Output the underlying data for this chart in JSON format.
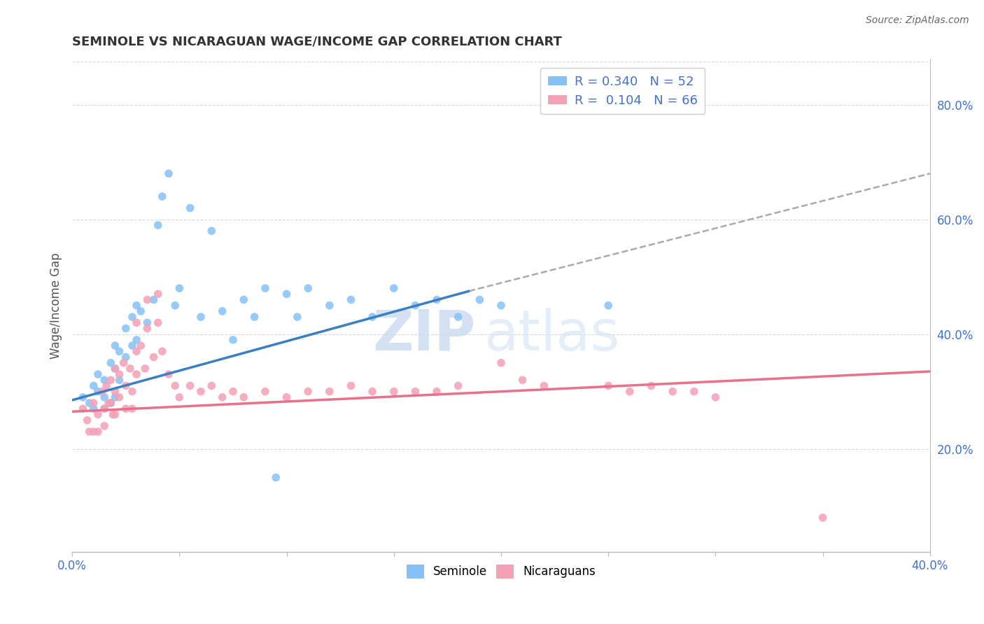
{
  "title": "SEMINOLE VS NICARAGUAN WAGE/INCOME GAP CORRELATION CHART",
  "source_text": "Source: ZipAtlas.com",
  "ylabel": "Wage/Income Gap",
  "y_tick_vals": [
    0.2,
    0.4,
    0.6,
    0.8
  ],
  "x_range": [
    0.0,
    0.4
  ],
  "y_range": [
    0.02,
    0.88
  ],
  "seminole_color": "#85c1f5",
  "nicaraguan_color": "#f4a0b5",
  "trend_blue": "#3a7fc1",
  "trend_pink": "#e8708a",
  "trend_dash": "#aaaaaa",
  "seminole_R": 0.34,
  "seminole_N": 52,
  "nicaraguan_R": 0.104,
  "nicaraguan_N": 66,
  "seminole_scatter_x": [
    0.005,
    0.008,
    0.01,
    0.01,
    0.012,
    0.012,
    0.015,
    0.015,
    0.015,
    0.018,
    0.018,
    0.02,
    0.02,
    0.02,
    0.022,
    0.022,
    0.025,
    0.025,
    0.028,
    0.028,
    0.03,
    0.03,
    0.032,
    0.035,
    0.038,
    0.04,
    0.042,
    0.045,
    0.048,
    0.05,
    0.055,
    0.06,
    0.065,
    0.07,
    0.075,
    0.08,
    0.085,
    0.09,
    0.095,
    0.1,
    0.105,
    0.11,
    0.12,
    0.13,
    0.14,
    0.15,
    0.16,
    0.17,
    0.18,
    0.19,
    0.2,
    0.25
  ],
  "seminole_scatter_y": [
    0.29,
    0.28,
    0.31,
    0.27,
    0.33,
    0.3,
    0.32,
    0.29,
    0.27,
    0.35,
    0.28,
    0.38,
    0.34,
    0.29,
    0.37,
    0.32,
    0.41,
    0.36,
    0.43,
    0.38,
    0.45,
    0.39,
    0.44,
    0.42,
    0.46,
    0.59,
    0.64,
    0.68,
    0.45,
    0.48,
    0.62,
    0.43,
    0.58,
    0.44,
    0.39,
    0.46,
    0.43,
    0.48,
    0.15,
    0.47,
    0.43,
    0.48,
    0.45,
    0.46,
    0.43,
    0.48,
    0.45,
    0.46,
    0.43,
    0.46,
    0.45,
    0.45
  ],
  "nicaraguan_scatter_x": [
    0.005,
    0.007,
    0.008,
    0.01,
    0.01,
    0.012,
    0.012,
    0.014,
    0.015,
    0.015,
    0.016,
    0.017,
    0.018,
    0.018,
    0.019,
    0.02,
    0.02,
    0.02,
    0.022,
    0.022,
    0.024,
    0.025,
    0.025,
    0.027,
    0.028,
    0.028,
    0.03,
    0.03,
    0.03,
    0.032,
    0.034,
    0.035,
    0.035,
    0.038,
    0.04,
    0.04,
    0.042,
    0.045,
    0.048,
    0.05,
    0.055,
    0.06,
    0.065,
    0.07,
    0.075,
    0.08,
    0.09,
    0.1,
    0.11,
    0.12,
    0.13,
    0.14,
    0.15,
    0.16,
    0.17,
    0.18,
    0.2,
    0.21,
    0.22,
    0.25,
    0.26,
    0.27,
    0.28,
    0.29,
    0.3,
    0.35
  ],
  "nicaraguan_scatter_y": [
    0.27,
    0.25,
    0.23,
    0.28,
    0.23,
    0.26,
    0.23,
    0.3,
    0.27,
    0.24,
    0.31,
    0.28,
    0.32,
    0.28,
    0.26,
    0.34,
    0.3,
    0.26,
    0.33,
    0.29,
    0.35,
    0.31,
    0.27,
    0.34,
    0.3,
    0.27,
    0.42,
    0.37,
    0.33,
    0.38,
    0.34,
    0.46,
    0.41,
    0.36,
    0.47,
    0.42,
    0.37,
    0.33,
    0.31,
    0.29,
    0.31,
    0.3,
    0.31,
    0.29,
    0.3,
    0.29,
    0.3,
    0.29,
    0.3,
    0.3,
    0.31,
    0.3,
    0.3,
    0.3,
    0.3,
    0.31,
    0.35,
    0.32,
    0.31,
    0.31,
    0.3,
    0.31,
    0.3,
    0.3,
    0.29,
    0.08
  ],
  "blue_line_x": [
    0.0,
    0.185
  ],
  "blue_line_y": [
    0.285,
    0.475
  ],
  "dash_line_x": [
    0.185,
    0.4
  ],
  "dash_line_y": [
    0.475,
    0.68
  ],
  "pink_line_x": [
    0.0,
    0.4
  ],
  "pink_line_y": [
    0.265,
    0.335
  ],
  "watermark_zip": "ZIP",
  "watermark_atlas": "atlas",
  "background_color": "#ffffff",
  "grid_color": "#d8d8d8"
}
